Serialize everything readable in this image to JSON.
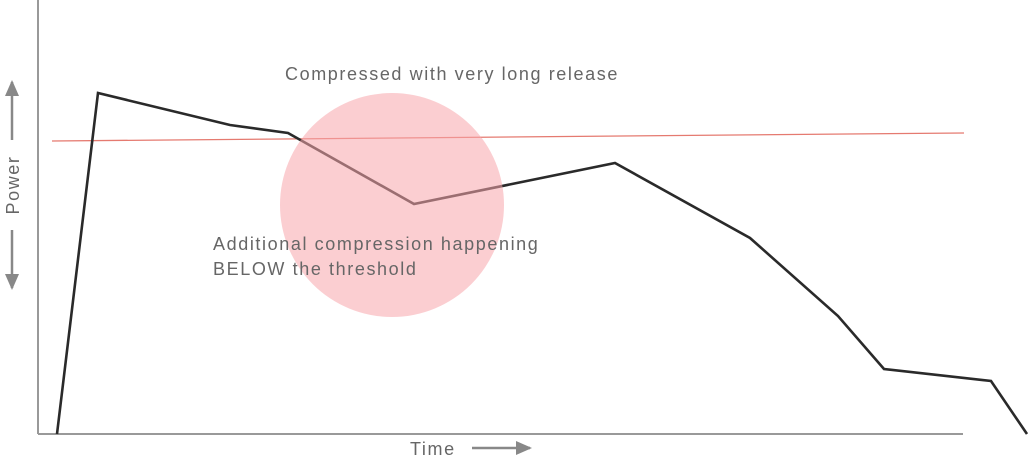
{
  "title": "Compressed with very long release",
  "annotation": [
    "Additional compression happening",
    "BELOW the threshold"
  ],
  "x_label": "Time",
  "y_label": "Power"
}
